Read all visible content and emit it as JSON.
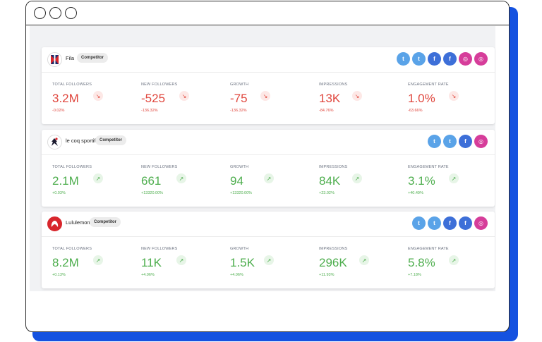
{
  "colors": {
    "frame_accent": "#1552e0",
    "negative": "#e0473e",
    "positive": "#4eae4e",
    "twitter": "#5aa3e8",
    "facebook": "#3d6fd8",
    "instagram": "#d63d9a"
  },
  "cards": [
    {
      "name": "Fila",
      "badge": "Competitor",
      "socials": [
        "twitter-icon",
        "twitter-icon",
        "facebook-icon",
        "facebook-icon",
        "instagram-icon",
        "instagram-icon"
      ],
      "metrics": [
        {
          "label": "TOTAL FOLLOWERS",
          "value": "3.2M",
          "delta": "-0.02%",
          "trend": "down"
        },
        {
          "label": "NEW FOLLOWERS",
          "value": "-525",
          "delta": "-136.32%",
          "trend": "down"
        },
        {
          "label": "GROWTH",
          "value": "-75",
          "delta": "-136.32%",
          "trend": "down"
        },
        {
          "label": "IMPRESSIONS",
          "value": "13K",
          "delta": "-84.76%",
          "trend": "down"
        },
        {
          "label": "ENGAGEMENT RATE",
          "value": "1.0%",
          "delta": "-63.66%",
          "trend": "down"
        }
      ]
    },
    {
      "name": "le coq sportif",
      "badge": "Competitor",
      "socials": [
        "twitter-icon",
        "twitter-icon",
        "facebook-icon",
        "instagram-icon"
      ],
      "metrics": [
        {
          "label": "TOTAL FOLLOWERS",
          "value": "2.1M",
          "delta": "+0.03%",
          "trend": "up"
        },
        {
          "label": "NEW FOLLOWERS",
          "value": "661",
          "delta": "+13320.00%",
          "trend": "up"
        },
        {
          "label": "GROWTH",
          "value": "94",
          "delta": "+13320.00%",
          "trend": "up"
        },
        {
          "label": "IMPRESSIONS",
          "value": "84K",
          "delta": "+23.02%",
          "trend": "up"
        },
        {
          "label": "ENGAGEMENT RATE",
          "value": "3.1%",
          "delta": "+40.49%",
          "trend": "up"
        }
      ]
    },
    {
      "name": "Lululemon",
      "badge": "Competitor",
      "socials": [
        "twitter-icon",
        "twitter-icon",
        "facebook-icon",
        "facebook-icon",
        "instagram-icon"
      ],
      "metrics": [
        {
          "label": "TOTAL FOLLOWERS",
          "value": "8.2M",
          "delta": "+0.13%",
          "trend": "up"
        },
        {
          "label": "NEW FOLLOWERS",
          "value": "11K",
          "delta": "+4.06%",
          "trend": "up"
        },
        {
          "label": "GROWTH",
          "value": "1.5K",
          "delta": "+4.06%",
          "trend": "up"
        },
        {
          "label": "IMPRESSIONS",
          "value": "296K",
          "delta": "+11.93%",
          "trend": "up"
        },
        {
          "label": "ENGAGEMENT RATE",
          "value": "5.8%",
          "delta": "+7.18%",
          "trend": "up"
        }
      ]
    }
  ]
}
